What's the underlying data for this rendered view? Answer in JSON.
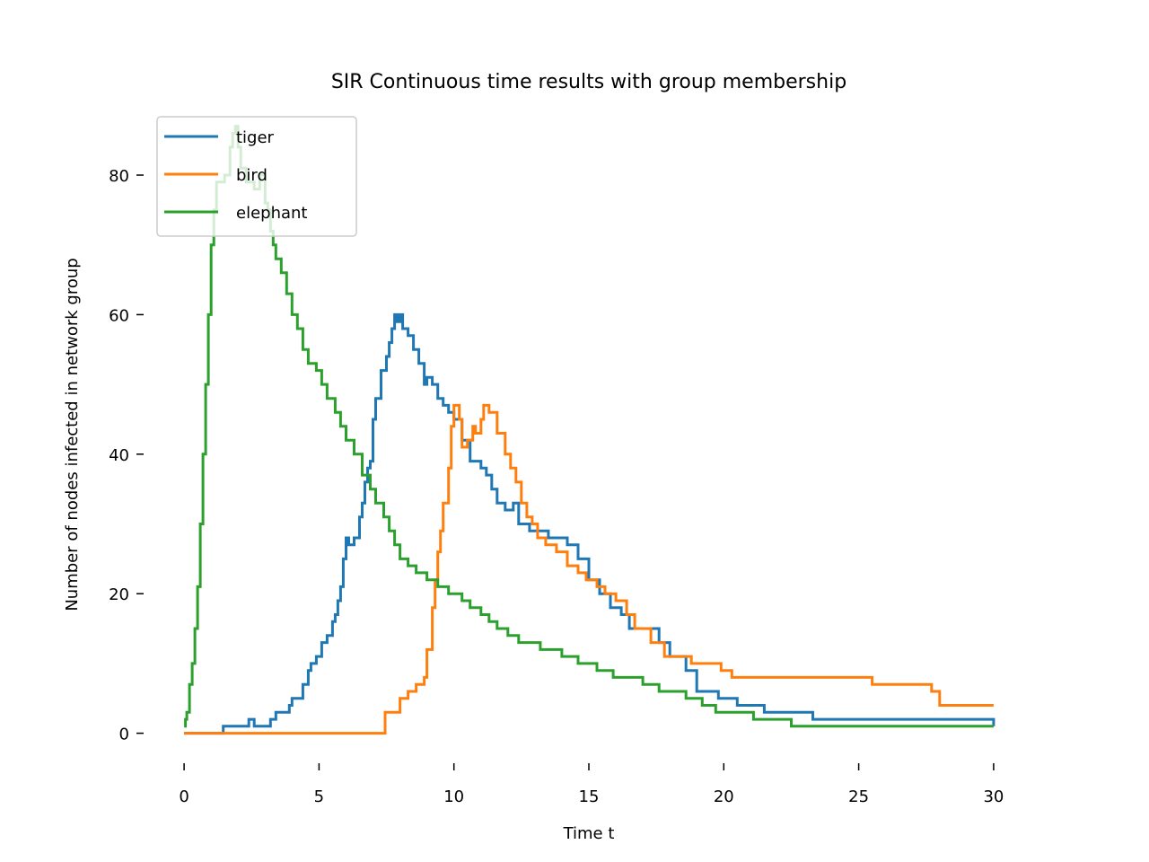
{
  "chart_data": {
    "type": "line",
    "title": "SIR Continuous time results with group membership",
    "xlabel": "Time t",
    "ylabel": "Number of nodes infected in network group",
    "xlim": [
      -1.5,
      31.5
    ],
    "ylim": [
      -4.3,
      90.3
    ],
    "xticks": [
      0,
      5,
      10,
      15,
      20,
      25,
      30
    ],
    "yticks": [
      0,
      20,
      40,
      60,
      80
    ],
    "xtick_labels": [
      "0",
      "5",
      "10",
      "15",
      "20",
      "25",
      "30"
    ],
    "ytick_labels": [
      "0",
      "20",
      "40",
      "60",
      "80"
    ],
    "grid": false,
    "legend_position": "top-left",
    "series": [
      {
        "name": "tiger",
        "color": "#1f77b4",
        "x": [
          0,
          1.4,
          1.45,
          2.0,
          2.4,
          2.6,
          3.0,
          3.2,
          3.4,
          3.6,
          3.9,
          4.0,
          4.4,
          4.6,
          4.7,
          4.9,
          5.1,
          5.3,
          5.5,
          5.6,
          5.7,
          5.8,
          5.9,
          6.0,
          6.1,
          6.3,
          6.5,
          6.6,
          6.7,
          6.8,
          6.9,
          7.0,
          7.1,
          7.3,
          7.5,
          7.6,
          7.7,
          7.8,
          7.9,
          8.0,
          8.1,
          8.3,
          8.5,
          8.7,
          8.9,
          9.0,
          9.2,
          9.4,
          9.6,
          9.8,
          10.0,
          10.3,
          10.6,
          11.0,
          11.2,
          11.4,
          11.6,
          11.9,
          12.2,
          12.4,
          12.8,
          13.5,
          14.2,
          14.6,
          15.0,
          15.4,
          15.8,
          16.2,
          16.5,
          17.0,
          17.6,
          18.0,
          18.6,
          19.0,
          19.8,
          20.5,
          21.5,
          23.3,
          26.0,
          29.0,
          29.9,
          30.0
        ],
        "values": [
          0,
          0,
          1,
          1,
          2,
          1,
          1,
          2,
          3,
          3,
          4,
          5,
          7,
          9,
          10,
          11,
          13,
          14,
          16,
          17,
          19,
          21,
          25,
          28,
          27,
          28,
          31,
          33,
          36,
          38,
          39,
          45,
          48,
          52,
          54,
          56,
          58,
          60,
          59,
          60,
          58,
          57,
          55,
          53,
          50,
          51,
          50,
          48,
          47,
          46,
          45,
          42,
          39,
          38,
          37,
          35,
          33,
          32,
          33,
          30,
          29,
          28,
          27,
          25,
          22,
          20,
          18,
          17,
          15,
          15,
          13,
          11,
          9,
          6,
          5,
          4,
          3,
          2,
          2,
          2,
          2,
          1
        ]
      },
      {
        "name": "bird",
        "color": "#ff7f0e",
        "x": [
          0,
          7.4,
          7.45,
          7.8,
          8.0,
          8.3,
          8.6,
          8.9,
          9.0,
          9.2,
          9.3,
          9.4,
          9.5,
          9.6,
          9.8,
          9.9,
          10.0,
          10.2,
          10.3,
          10.5,
          10.7,
          10.8,
          11.0,
          11.1,
          11.3,
          11.6,
          11.9,
          12.1,
          12.3,
          12.5,
          12.7,
          12.9,
          13.1,
          13.4,
          13.8,
          14.2,
          14.6,
          14.9,
          15.3,
          15.6,
          16.0,
          16.4,
          16.7,
          17.3,
          17.8,
          18.8,
          19.9,
          20.3,
          22.0,
          25.5,
          27.7,
          28.0,
          30.0
        ],
        "values": [
          0,
          0,
          3,
          3,
          5,
          6,
          7,
          8,
          12,
          18,
          22,
          26,
          29,
          33,
          38,
          44,
          47,
          45,
          41,
          42,
          44,
          43,
          45,
          47,
          46,
          43,
          40,
          38,
          36,
          33,
          31,
          30,
          28,
          27,
          26,
          24,
          23,
          22,
          21,
          20,
          19,
          17,
          15,
          13,
          11,
          10,
          9,
          8,
          8,
          7,
          6,
          4,
          4
        ]
      },
      {
        "name": "elephant",
        "color": "#2ca02c",
        "x": [
          0,
          0.05,
          0.1,
          0.2,
          0.3,
          0.4,
          0.5,
          0.6,
          0.7,
          0.8,
          0.9,
          1.0,
          1.1,
          1.2,
          1.3,
          1.5,
          1.7,
          1.8,
          1.9,
          2.0,
          2.1,
          2.3,
          2.6,
          2.8,
          3.0,
          3.1,
          3.2,
          3.3,
          3.4,
          3.6,
          3.8,
          4.0,
          4.2,
          4.4,
          4.6,
          4.9,
          5.1,
          5.3,
          5.6,
          5.8,
          6.0,
          6.3,
          6.6,
          6.9,
          7.1,
          7.4,
          7.6,
          7.8,
          8.0,
          8.3,
          8.6,
          9.0,
          9.4,
          9.8,
          10.3,
          10.6,
          11.0,
          11.3,
          11.6,
          12.0,
          12.4,
          13.2,
          13.5,
          14.0,
          14.6,
          15.3,
          15.9,
          16.5,
          17.0,
          17.6,
          18.0,
          18.6,
          19.2,
          19.7,
          20.2,
          21.1,
          22.0,
          22.5,
          30.0
        ],
        "values": [
          1,
          2,
          3,
          7,
          10,
          15,
          21,
          30,
          40,
          50,
          60,
          70,
          75,
          79,
          79,
          80,
          84,
          86,
          87,
          84,
          81,
          79,
          78,
          80,
          76,
          75,
          72,
          70,
          68,
          66,
          63,
          60,
          58,
          55,
          53,
          52,
          50,
          48,
          46,
          44,
          42,
          40,
          37,
          35,
          33,
          31,
          29,
          27,
          25,
          24,
          23,
          22,
          21,
          20,
          19,
          18,
          17,
          16,
          15,
          14,
          13,
          12,
          12,
          11,
          10,
          9,
          8,
          8,
          7,
          6,
          6,
          5,
          4,
          3,
          3,
          2,
          2,
          1,
          1
        ]
      }
    ]
  }
}
